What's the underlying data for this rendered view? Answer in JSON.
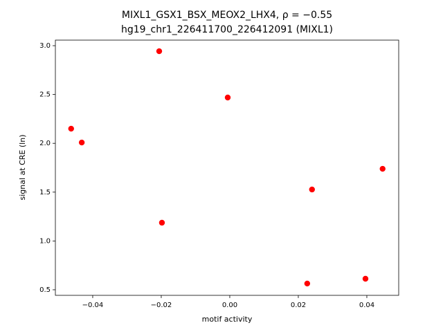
{
  "chart_data": {
    "type": "scatter",
    "title": "MIXL1_GSX1_BSX_MEOX2_LHX4, ρ = −0.55",
    "subtitle": "hg19_chr1_226411700_226412091 (MIXL1)",
    "x_label": "motif activity",
    "y_label": "signal at CRE (ln)",
    "color": "#ff0000",
    "x": [
      -0.0463,
      -0.0432,
      -0.0206,
      -0.0198,
      -0.0006,
      0.0226,
      0.024,
      0.0396,
      0.0446
    ],
    "values": [
      2.15,
      2.008,
      2.943,
      1.187,
      2.469,
      0.564,
      1.527,
      0.613,
      1.739
    ],
    "xlim": [
      -0.0509,
      0.0493
    ],
    "ylim": [
      0.443,
      3.057
    ],
    "xticks": [
      {
        "value": -0.04,
        "label": "−0.04"
      },
      {
        "value": -0.02,
        "label": "−0.02"
      },
      {
        "value": 0,
        "label": "0.00"
      },
      0.02,
      0.04
    ],
    "yticks": [
      0.5,
      {
        "value": 1,
        "label": "1.0"
      },
      1.5,
      {
        "value": 2,
        "label": "2.0"
      },
      2.5,
      {
        "value": 3,
        "label": "3.0"
      }
    ]
  }
}
